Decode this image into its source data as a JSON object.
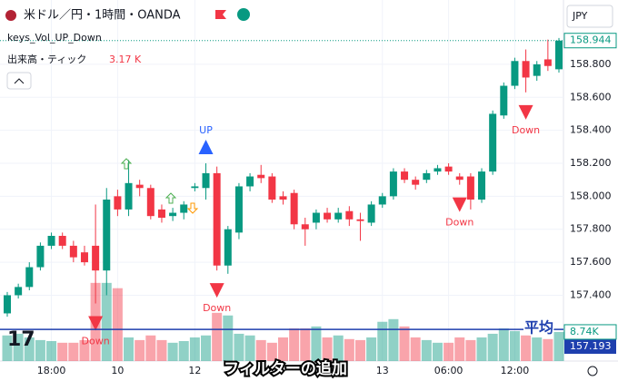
{
  "chart_data": {
    "type": "candlestick",
    "title": "米ドル／円・1時間・OANDA",
    "indicator": "keys_Vol_UP_Down",
    "volume_label": "出来高・ティック",
    "volume_value": "3.17 K",
    "currency": "JPY",
    "average_label": "平均",
    "overlay_text": "フィルターの追加",
    "up_color": "#089981",
    "down_color": "#f23645",
    "open": [
      157.29,
      157.4,
      157.45,
      157.57,
      157.7,
      157.76,
      157.7,
      157.66,
      157.7,
      157.55,
      158.0,
      157.92,
      158.07,
      158.05,
      157.92,
      157.88,
      157.9,
      158.05,
      158.05,
      158.14,
      157.58,
      157.78,
      158.06,
      158.13,
      158.12,
      158.0,
      158.02,
      157.83,
      157.84,
      157.9,
      157.86,
      157.91,
      157.86,
      157.84,
      157.95,
      158.0,
      158.15,
      158.1,
      158.1,
      158.15,
      158.18,
      158.12,
      158.12,
      157.98,
      158.15,
      158.49,
      158.67,
      158.82,
      158.73,
      158.83,
      158.77
    ],
    "high": [
      157.42,
      157.47,
      157.6,
      157.72,
      157.78,
      157.78,
      157.73,
      157.7,
      157.95,
      158.05,
      158.04,
      158.22,
      158.1,
      158.07,
      157.95,
      157.93,
      157.97,
      158.08,
      158.2,
      158.18,
      157.82,
      158.08,
      158.14,
      158.19,
      158.14,
      158.03,
      158.04,
      157.87,
      157.92,
      157.93,
      157.93,
      157.94,
      157.9,
      157.97,
      158.02,
      158.17,
      158.17,
      158.12,
      158.16,
      158.19,
      158.2,
      158.14,
      158.14,
      158.17,
      158.52,
      158.69,
      158.84,
      158.89,
      158.82,
      158.95,
      158.96
    ],
    "low": [
      157.27,
      157.38,
      157.43,
      157.55,
      157.68,
      157.68,
      157.6,
      157.58,
      157.35,
      157.4,
      157.88,
      157.88,
      158.0,
      157.86,
      157.84,
      157.85,
      157.86,
      158.03,
      157.98,
      157.55,
      157.53,
      157.74,
      158.03,
      158.08,
      157.96,
      157.95,
      157.8,
      157.7,
      157.8,
      157.84,
      157.84,
      157.82,
      157.73,
      157.82,
      157.93,
      157.98,
      158.08,
      158.04,
      158.08,
      158.13,
      158.13,
      158.07,
      157.92,
      157.96,
      158.13,
      158.47,
      158.65,
      158.63,
      158.7,
      158.76,
      158.75
    ],
    "close": [
      157.4,
      157.45,
      157.57,
      157.7,
      157.76,
      157.7,
      157.63,
      157.6,
      157.55,
      157.98,
      157.92,
      158.08,
      158.05,
      157.88,
      157.87,
      157.9,
      157.95,
      158.06,
      158.14,
      157.58,
      157.8,
      158.06,
      158.12,
      158.11,
      157.98,
      157.98,
      157.83,
      157.8,
      157.9,
      157.86,
      157.9,
      157.86,
      157.85,
      157.95,
      158.0,
      158.15,
      158.1,
      158.07,
      158.14,
      158.17,
      158.15,
      158.1,
      157.98,
      158.15,
      158.5,
      158.67,
      158.82,
      158.72,
      158.8,
      158.79,
      158.944
    ],
    "volume": [
      7.7,
      8.2,
      7.1,
      6.3,
      6.0,
      5.5,
      5.5,
      6.3,
      23.5,
      23.5,
      21.9,
      7.1,
      6.3,
      7.7,
      6.3,
      5.5,
      6.0,
      7.1,
      7.7,
      14.5,
      13.7,
      8.2,
      7.7,
      6.3,
      5.5,
      7.1,
      9.8,
      9.8,
      10.4,
      7.1,
      7.7,
      6.6,
      6.3,
      7.1,
      11.8,
      12.6,
      10.4,
      7.1,
      6.3,
      5.5,
      5.5,
      7.1,
      6.3,
      7.1,
      8.2,
      9.8,
      9.0,
      7.7,
      7.1,
      6.6,
      8.74
    ],
    "last_volume_label": "8.74K",
    "ylim": [
      156.99,
      159.19
    ],
    "yticks": [
      {
        "value": 157.4,
        "label": "157.400"
      },
      {
        "value": 157.6,
        "label": "157.600"
      },
      {
        "value": 157.8,
        "label": "157.800"
      },
      {
        "value": 158,
        "label": "158.000"
      },
      {
        "value": 158.2,
        "label": "158.200"
      },
      {
        "value": 158.4,
        "label": "158.400"
      },
      {
        "value": 158.6,
        "label": "158.600"
      },
      {
        "value": 158.8,
        "label": "158.800"
      }
    ],
    "y2lim": [
      0,
      24
    ],
    "xticks": [
      {
        "value": 4,
        "label": "18:00"
      },
      {
        "value": 10,
        "label": "10"
      },
      {
        "value": 17,
        "label": "12"
      },
      {
        "value": 34,
        "label": "13"
      },
      {
        "value": 40,
        "label": "06:00"
      },
      {
        "value": 46,
        "label": "12:00"
      }
    ],
    "markers": [
      {
        "index": 8,
        "position": "below",
        "label": "Down"
      },
      {
        "index": 18,
        "position": "above",
        "label": "UP"
      },
      {
        "index": 19,
        "position": "below",
        "label": "Down"
      },
      {
        "index": 41,
        "position": "below",
        "label": "Down"
      },
      {
        "index": 47,
        "position": "below",
        "label": "Down"
      }
    ],
    "last_price": {
      "value": 158.944,
      "label": "158.944"
    },
    "average_line": {
      "value": 157.193,
      "label": "157.193"
    }
  }
}
